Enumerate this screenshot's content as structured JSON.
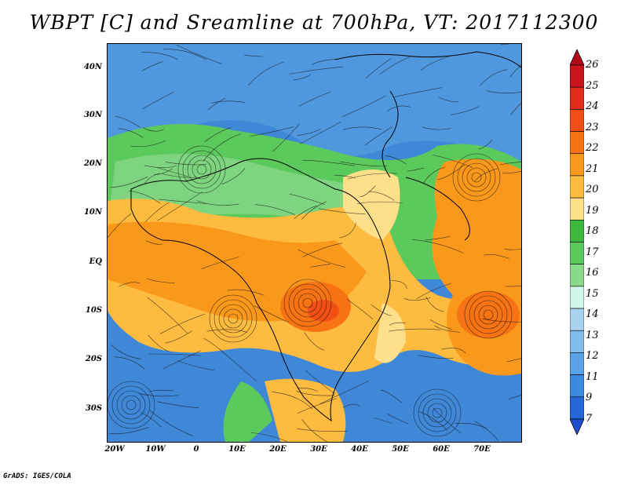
{
  "title": "WBPT [C] and Sreamline at 700hPa, VT: 2017112300",
  "credit": "GrADS: IGES/COLA",
  "map": {
    "lat_labels": [
      "40N",
      "30N",
      "20N",
      "10N",
      "EQ",
      "10S",
      "20S",
      "30S"
    ],
    "lon_labels": [
      "20W",
      "10W",
      "0",
      "10E",
      "20E",
      "30E",
      "40E",
      "50E",
      "60E",
      "70E"
    ]
  },
  "colorbar": {
    "levels": [
      "26",
      "25",
      "24",
      "23",
      "22",
      "21",
      "20",
      "19",
      "18",
      "17",
      "16",
      "15",
      "14",
      "13",
      "12",
      "11",
      "9",
      "7"
    ],
    "colors": [
      "#b0071b",
      "#c9141e",
      "#e12c1c",
      "#f24f16",
      "#f87314",
      "#fa981c",
      "#fdbb40",
      "#fee08a",
      "#3cb83c",
      "#5cc95c",
      "#8ad88a",
      "#d0f5e9",
      "#a7d3f0",
      "#82bced",
      "#5aa3e8",
      "#3d89e0",
      "#2468d8",
      "#1f4fcf"
    ]
  }
}
